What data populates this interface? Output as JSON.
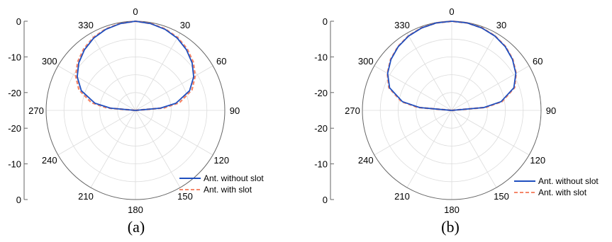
{
  "chart_data": [
    {
      "type": "polar-line",
      "caption": "(a)",
      "angle_ticks": [
        "0",
        "30",
        "60",
        "90",
        "120",
        "150",
        "180",
        "210",
        "240",
        "270",
        "300",
        "330"
      ],
      "radial_axis": {
        "ticks_top": [
          "0",
          "-10",
          "-20"
        ],
        "ticks_bottom": [
          "-20",
          "-10",
          "0"
        ],
        "range_db": [
          -25,
          0
        ]
      },
      "theta_deg": [
        0,
        10,
        20,
        30,
        40,
        50,
        60,
        70,
        80,
        85,
        90,
        270,
        275,
        280,
        290,
        300,
        310,
        320,
        330,
        340,
        350
      ],
      "series": [
        {
          "name": "Ant. without slot",
          "color": "#1f4fbf",
          "style": "solid",
          "values_db": [
            0,
            -0.3,
            -0.8,
            -1.6,
            -2.8,
            -4.3,
            -6.2,
            -8.9,
            -13.5,
            -18,
            -25,
            -25,
            -18,
            -13.5,
            -8.9,
            -6.2,
            -4.3,
            -2.8,
            -1.6,
            -0.8,
            -0.3
          ]
        },
        {
          "name": "Ant. with slot",
          "color": "#f5876a",
          "style": "dashed",
          "values_db": [
            0,
            -0.25,
            -0.7,
            -1.4,
            -2.5,
            -3.9,
            -5.7,
            -8.2,
            -12.5,
            -17,
            -25,
            -25,
            -17,
            -12.5,
            -8.2,
            -5.7,
            -3.9,
            -2.5,
            -1.4,
            -0.7,
            -0.25
          ]
        }
      ]
    },
    {
      "type": "polar-line",
      "caption": "(b)",
      "angle_ticks": [
        "0",
        "30",
        "60",
        "90",
        "120",
        "150",
        "180",
        "210",
        "240",
        "270",
        "300",
        "330"
      ],
      "radial_axis": {
        "ticks_top": [
          "0",
          "-10",
          "-20"
        ],
        "ticks_bottom": [
          "-20",
          "-10",
          "0"
        ],
        "range_db": [
          -25,
          0
        ]
      },
      "theta_deg": [
        0,
        10,
        20,
        30,
        40,
        50,
        60,
        70,
        80,
        85,
        90,
        270,
        275,
        280,
        290,
        300,
        310,
        320,
        330,
        340,
        350
      ],
      "series": [
        {
          "name": "Ant. without slot",
          "color": "#1f4fbf",
          "style": "solid",
          "values_db": [
            0,
            -0.1,
            -0.4,
            -0.9,
            -1.7,
            -2.8,
            -4.3,
            -6.5,
            -11,
            -16,
            -25,
            -25,
            -16,
            -11,
            -6.5,
            -4.3,
            -2.8,
            -1.7,
            -0.9,
            -0.4,
            -0.1
          ]
        },
        {
          "name": "Ant. with slot",
          "color": "#f5876a",
          "style": "dashed",
          "values_db": [
            0,
            -0.1,
            -0.35,
            -0.85,
            -1.6,
            -2.7,
            -4.2,
            -6.3,
            -10.7,
            -15.5,
            -25,
            -25,
            -15.5,
            -10.7,
            -6.3,
            -4.2,
            -2.7,
            -1.6,
            -0.85,
            -0.35,
            -0.1
          ]
        }
      ]
    }
  ]
}
